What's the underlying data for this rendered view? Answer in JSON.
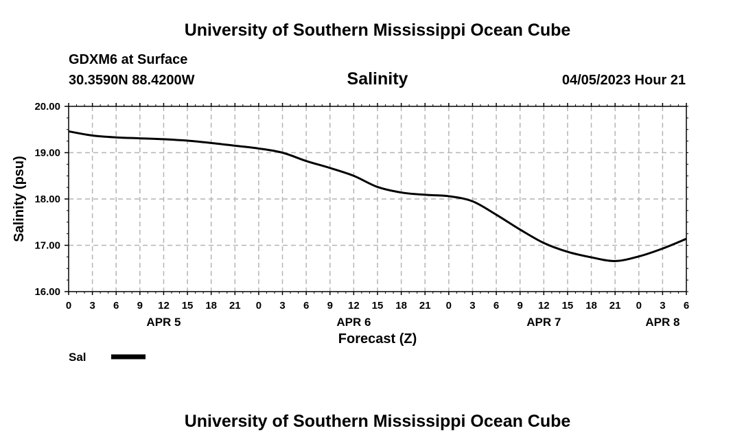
{
  "page": {
    "title_top": "University of Southern Mississippi Ocean Cube",
    "title_bottom": "University of Southern Mississippi Ocean Cube",
    "station": "GDXM6 at Surface",
    "coords": "30.3590N  88.4200W",
    "datetime": "04/05/2023 Hour 21"
  },
  "colors": {
    "line": "#000000",
    "grid": "#b4b4b4",
    "background": "#ffffff"
  },
  "chart_data": {
    "type": "line",
    "title": "Salinity",
    "xlabel": "Forecast (Z)",
    "ylabel": "Salinity (psu)",
    "grid": true,
    "xlim": [
      0,
      78
    ],
    "ylim": [
      16,
      20
    ],
    "x_ticks": [
      0,
      3,
      6,
      9,
      12,
      15,
      18,
      21,
      24,
      27,
      30,
      33,
      36,
      39,
      42,
      45,
      48,
      51,
      54,
      57,
      60,
      63,
      66,
      69,
      72,
      75,
      78
    ],
    "x_tick_labels": [
      "0",
      "3",
      "6",
      "9",
      "12",
      "15",
      "18",
      "21",
      "0",
      "3",
      "6",
      "9",
      "12",
      "15",
      "18",
      "21",
      "0",
      "3",
      "6",
      "9",
      "12",
      "15",
      "18",
      "21",
      "0",
      "3",
      "6"
    ],
    "y_ticks": [
      16,
      17,
      18,
      19,
      20
    ],
    "y_tick_labels": [
      "16.00",
      "17.00",
      "18.00",
      "19.00",
      "20.00"
    ],
    "day_labels": [
      {
        "text": "APR 5",
        "x": 12
      },
      {
        "text": "APR 6",
        "x": 36
      },
      {
        "text": "APR 7",
        "x": 60
      },
      {
        "text": "APR 8",
        "x": 75
      }
    ],
    "legend": [
      {
        "name": "Sal",
        "placement": "bottom-left"
      }
    ],
    "series": [
      {
        "name": "Sal",
        "x": [
          0,
          3,
          6,
          9,
          12,
          15,
          18,
          21,
          24,
          27,
          30,
          33,
          36,
          39,
          42,
          45,
          48,
          51,
          54,
          57,
          60,
          63,
          66,
          69,
          72,
          75,
          78
        ],
        "y": [
          19.46,
          19.37,
          19.33,
          19.31,
          19.29,
          19.26,
          19.21,
          19.15,
          19.09,
          19.0,
          18.82,
          18.67,
          18.5,
          18.26,
          18.14,
          18.09,
          18.06,
          17.95,
          17.66,
          17.34,
          17.05,
          16.86,
          16.74,
          16.66,
          16.76,
          16.93,
          17.14
        ]
      }
    ]
  }
}
